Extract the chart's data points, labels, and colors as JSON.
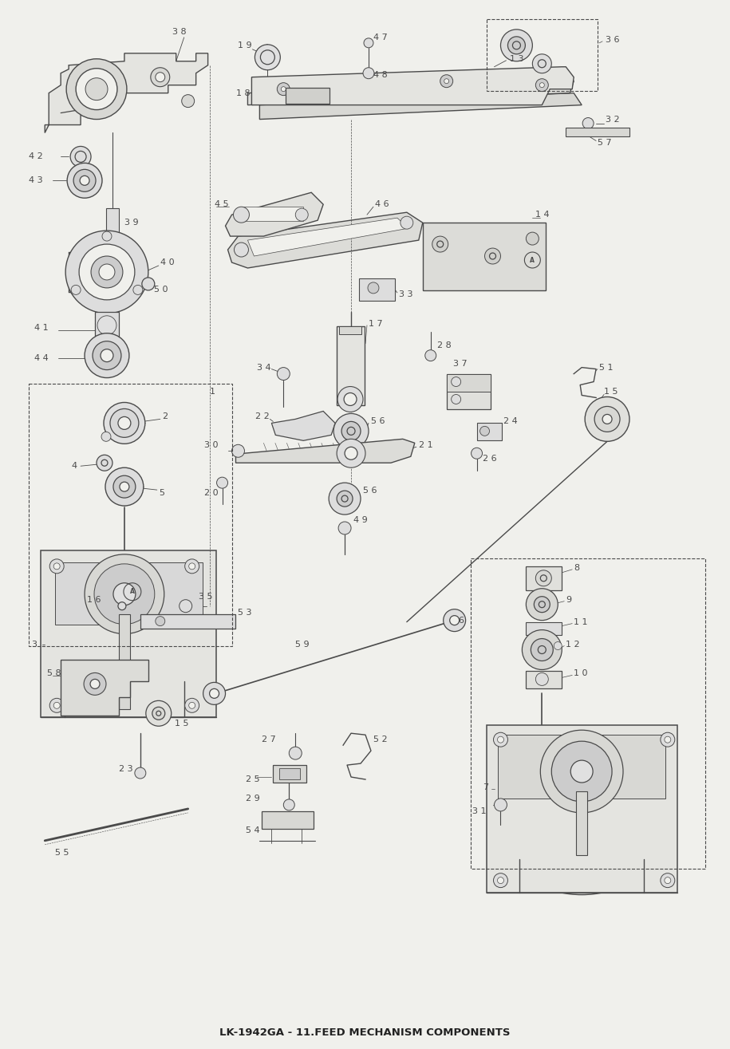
{
  "title": "LK-1942GA - 11.FEED MECHANISM COMPONENTS",
  "bg_color": "#f0f0ec",
  "line_color": "#4a4a4a",
  "lw": 0.9,
  "figsize": [
    9.15,
    13.15
  ],
  "dpi": 100
}
